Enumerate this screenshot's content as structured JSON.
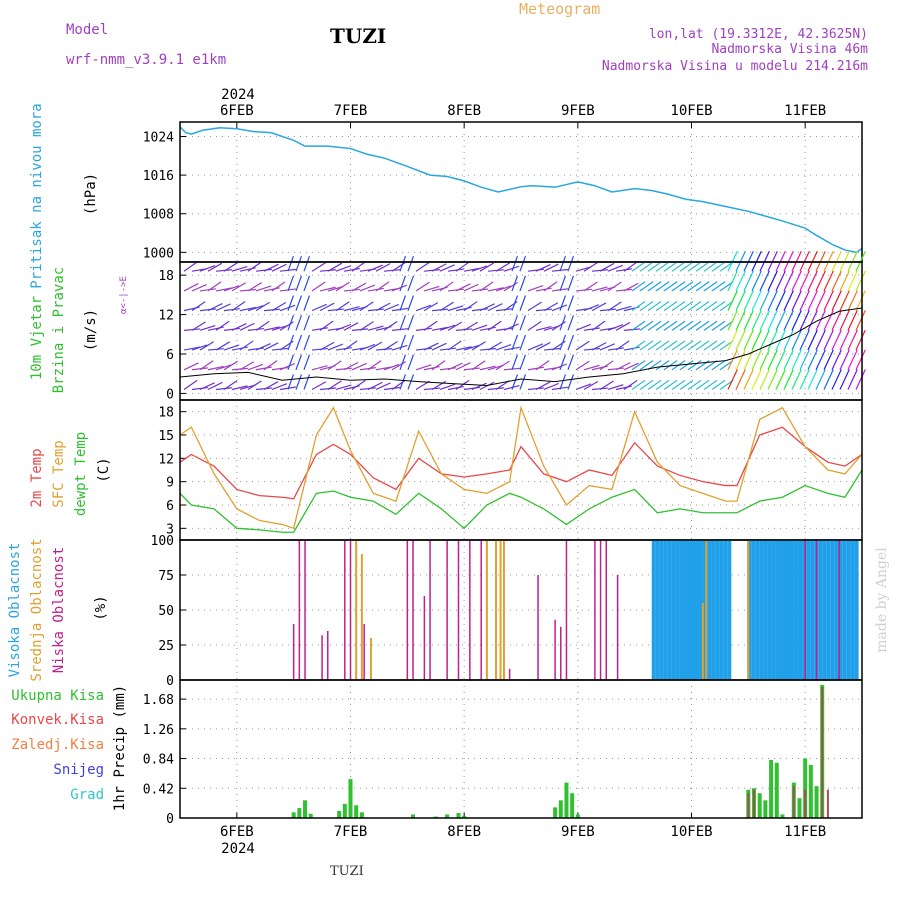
{
  "header": {
    "model_label": "Model",
    "model_name": "wrf-nmm_v3.9.1 e1km",
    "station": "TUZI",
    "meteogram": "Meteogram",
    "lonlat": "lon,lat (19.3312E, 42.3625N)",
    "elevation": "Nadmorska Visina 46m",
    "model_elevation": "Nadmorska Visina u modelu 214.216m",
    "footer_station": "TUZI",
    "credit": "made by Angel"
  },
  "colors": {
    "pressure": "#2aa6e0",
    "temp2m": "#e84848",
    "sfc": "#e0a030",
    "dewpt": "#30c030",
    "high_cloud": "#20a0e8",
    "mid_cloud": "#e0a030",
    "low_cloud": "#c0208c",
    "wind_gust": "#e83030",
    "wind_dir": "#a040c0",
    "precip_total": "#30c030",
    "precip_conv": "#e84848",
    "precip_frz": "#f08040",
    "snow": "#4040e0",
    "hail": "#30c8c8"
  },
  "time_axis": {
    "year": "2024",
    "labels": [
      "6FEB",
      "7FEB",
      "8FEB",
      "9FEB",
      "10FEB",
      "11FEB"
    ]
  },
  "panels": {
    "pressure": {
      "label": "Pritisak na nivou mora",
      "unit": "(hPa)"
    },
    "wind": {
      "label1": "10m Vjetar",
      "label2": "Brzina i Pravac",
      "unit": "(m/s)",
      "compass": "α<-|->E"
    },
    "temp": {
      "label1": "2m Temp",
      "label2": "SFC Temp",
      "label3": "dewpt Temp",
      "unit": "(C)"
    },
    "cloud": {
      "label1": "Visoka Oblacnost",
      "label2": "Srednja Oblacnost",
      "label3": "Niska Oblacnost",
      "unit": "(%)"
    },
    "precip": {
      "unit": "1hr Precip (mm)",
      "legend": [
        "Ukupna Kisa",
        "Konvek.Kisa",
        "Zaledj.Kisa",
        "Snijeg",
        "Grad"
      ]
    }
  },
  "chart_data": [
    {
      "type": "line",
      "title": "Pritisak na nivou mora",
      "ylabel": "(hPa)",
      "x_unit": "days since 2024-02-05 12:00",
      "ylim": [
        998,
        1027
      ],
      "yticks": [
        1000,
        1008,
        1016,
        1024
      ],
      "series": [
        {
          "name": "Pritisak na nivou mora",
          "x": [
            0,
            0.05,
            0.1,
            0.2,
            0.35,
            0.5,
            0.65,
            0.8,
            1.0,
            1.1,
            1.3,
            1.5,
            1.65,
            1.8,
            2.0,
            2.2,
            2.35,
            2.5,
            2.65,
            2.8,
            3.0,
            3.1,
            3.3,
            3.5,
            3.65,
            3.8,
            4.0,
            4.15,
            4.3,
            4.45,
            4.6,
            4.8,
            5.0,
            5.15,
            5.3,
            5.5,
            5.6,
            5.75,
            5.85,
            5.95,
            6.0
          ],
          "y": [
            1026,
            1024.8,
            1024.5,
            1025.3,
            1025.8,
            1025.6,
            1025,
            1024.8,
            1023.2,
            1022.0,
            1022.0,
            1021.5,
            1020.3,
            1019.5,
            1017.8,
            1016.0,
            1015.7,
            1014.8,
            1013.5,
            1012.5,
            1013.6,
            1013.8,
            1013.5,
            1014.6,
            1013.8,
            1012.5,
            1013.2,
            1012.8,
            1012.0,
            1011.0,
            1010.5,
            1009.5,
            1008.5,
            1007.5,
            1006.5,
            1005.0,
            1003.5,
            1001.5,
            1000.5,
            1000.0,
            1000.8
          ]
        }
      ]
    },
    {
      "type": "line",
      "title": "10m Vjetar Brzina i Pravac",
      "ylabel": "(m/s)",
      "ylim": [
        -1,
        20
      ],
      "yticks": [
        0,
        6,
        12,
        18
      ],
      "series": [
        {
          "name": "10m Vjetar",
          "x": [
            0,
            0.3,
            0.6,
            0.9,
            1.2,
            1.5,
            1.8,
            2.1,
            2.4,
            2.7,
            3.0,
            3.3,
            3.6,
            3.9,
            4.2,
            4.5,
            4.8,
            5.0,
            5.2,
            5.4,
            5.6,
            5.8,
            6.0
          ],
          "y": [
            2.5,
            3.0,
            3.2,
            2.0,
            2.5,
            2.0,
            2.2,
            1.8,
            1.5,
            1.2,
            2.2,
            1.8,
            2.5,
            3.0,
            4.0,
            4.5,
            5.0,
            6.0,
            7.5,
            9.0,
            11.0,
            12.5,
            13.0
          ]
        }
      ]
    },
    {
      "type": "line",
      "title": "2m Temp / SFC Temp / dewpt Temp",
      "ylabel": "(C)",
      "ylim": [
        1.5,
        19.5
      ],
      "yticks": [
        3,
        6,
        9,
        12,
        15,
        18
      ],
      "series": [
        {
          "name": "2m Temp",
          "x": [
            0,
            0.1,
            0.3,
            0.5,
            0.7,
            0.9,
            1.0,
            1.2,
            1.35,
            1.5,
            1.7,
            1.9,
            2.1,
            2.3,
            2.5,
            2.7,
            2.9,
            3.0,
            3.2,
            3.4,
            3.6,
            3.8,
            4.0,
            4.2,
            4.4,
            4.6,
            4.8,
            4.9,
            5.1,
            5.3,
            5.5,
            5.7,
            5.85,
            6.0
          ],
          "y": [
            11.5,
            12.5,
            11.0,
            8.0,
            7.2,
            7.0,
            6.8,
            12.5,
            13.8,
            12.5,
            9.5,
            8.0,
            12.0,
            10.0,
            9.6,
            10.0,
            10.5,
            13.5,
            10.0,
            9.0,
            10.5,
            9.8,
            14.0,
            11.0,
            9.8,
            9.0,
            8.5,
            8.5,
            15.0,
            16.0,
            13.5,
            11.5,
            11.0,
            12.5
          ]
        },
        {
          "name": "SFC Temp",
          "x": [
            0,
            0.1,
            0.3,
            0.5,
            0.7,
            0.9,
            1.0,
            1.2,
            1.35,
            1.5,
            1.7,
            1.9,
            2.1,
            2.3,
            2.5,
            2.7,
            2.9,
            3.0,
            3.2,
            3.4,
            3.6,
            3.8,
            4.0,
            4.2,
            4.4,
            4.6,
            4.8,
            4.9,
            5.1,
            5.3,
            5.5,
            5.7,
            5.85,
            6.0
          ],
          "y": [
            15.0,
            16.0,
            10.0,
            5.5,
            4.0,
            3.5,
            3.0,
            15.0,
            18.5,
            13.0,
            7.5,
            6.5,
            15.5,
            10.0,
            8.0,
            7.5,
            9.0,
            18.5,
            11.0,
            6.0,
            8.5,
            8.0,
            18.0,
            11.5,
            8.5,
            7.5,
            6.5,
            6.5,
            17.0,
            18.5,
            13.5,
            10.5,
            10.0,
            12.5
          ]
        },
        {
          "name": "dewpt Temp",
          "x": [
            0,
            0.1,
            0.3,
            0.5,
            0.7,
            0.9,
            1.0,
            1.2,
            1.35,
            1.5,
            1.7,
            1.9,
            2.1,
            2.3,
            2.5,
            2.7,
            2.9,
            3.0,
            3.2,
            3.4,
            3.6,
            3.8,
            4.0,
            4.2,
            4.4,
            4.6,
            4.8,
            4.9,
            5.1,
            5.3,
            5.5,
            5.7,
            5.85,
            6.0
          ],
          "y": [
            7.5,
            6.0,
            5.5,
            3.0,
            2.8,
            2.5,
            2.5,
            7.5,
            7.8,
            7.0,
            6.5,
            4.8,
            7.5,
            5.5,
            3.0,
            6.0,
            7.5,
            7.0,
            5.5,
            3.5,
            5.5,
            7.0,
            8.0,
            5.0,
            5.5,
            5.0,
            5.0,
            5.0,
            6.5,
            7.0,
            8.5,
            7.5,
            7.0,
            10.5
          ]
        }
      ]
    },
    {
      "type": "bar",
      "title": "Visoka / Srednja / Niska Oblacnost",
      "ylabel": "(%)",
      "ylim": [
        0,
        100
      ],
      "yticks": [
        0,
        25,
        50,
        75,
        100
      ],
      "series": [
        {
          "name": "Niska Oblacnost",
          "x": [
            1.0,
            1.05,
            1.1,
            1.25,
            1.3,
            1.45,
            1.5,
            1.62,
            2.0,
            2.05,
            2.15,
            2.2,
            2.35,
            2.45,
            2.55,
            2.65,
            2.9,
            3.15,
            3.3,
            3.35,
            3.4,
            3.65,
            3.7,
            3.75,
            3.85,
            5.5,
            5.6,
            5.8
          ],
          "y": [
            40,
            100,
            100,
            32,
            35,
            100,
            100,
            40,
            100,
            100,
            60,
            100,
            100,
            100,
            100,
            100,
            8,
            75,
            43,
            38,
            100,
            100,
            100,
            100,
            75,
            100,
            100,
            100
          ]
        },
        {
          "name": "Srednja Oblacnost",
          "x": [
            1.55,
            1.6,
            1.68,
            2.7,
            2.78,
            2.82,
            2.85,
            4.6,
            4.63,
            5.0
          ],
          "y": [
            100,
            90,
            30,
            100,
            100,
            100,
            100,
            55,
            100,
            100
          ]
        },
        {
          "name": "Visoka Oblacnost",
          "x_range": [
            4.15,
            5.95
          ],
          "step": 0.035,
          "y": 100
        }
      ]
    },
    {
      "type": "bar",
      "title": "1hr Precip",
      "ylabel": "1hr Precip (mm)",
      "ylim": [
        0,
        1.95
      ],
      "yticks": [
        0,
        0.42,
        0.84,
        1.26,
        1.68
      ],
      "series": [
        {
          "name": "Ukupna Kisa",
          "x": [
            1.0,
            1.05,
            1.1,
            1.15,
            1.4,
            1.45,
            1.5,
            1.55,
            1.6,
            2.05,
            2.25,
            2.35,
            2.45,
            2.5,
            3.3,
            3.35,
            3.4,
            3.45,
            3.5,
            5.0,
            5.05,
            5.1,
            5.15,
            5.2,
            5.25,
            5.3,
            5.4,
            5.45,
            5.5,
            5.55,
            5.6,
            5.65
          ],
          "y": [
            0.08,
            0.14,
            0.25,
            0.06,
            0.1,
            0.2,
            0.55,
            0.18,
            0.08,
            0.05,
            0.02,
            0.05,
            0.07,
            0.03,
            0.15,
            0.25,
            0.5,
            0.35,
            0.05,
            0.4,
            0.42,
            0.35,
            0.25,
            0.82,
            0.78,
            0.05,
            0.5,
            0.28,
            0.84,
            0.75,
            0.45,
            1.88
          ]
        },
        {
          "name": "Konvek.Kisa",
          "x": [
            5.0,
            5.05,
            5.4,
            5.5,
            5.65,
            5.7
          ],
          "y": [
            0.35,
            0.4,
            0.45,
            0.4,
            1.85,
            0.4
          ]
        }
      ]
    }
  ]
}
